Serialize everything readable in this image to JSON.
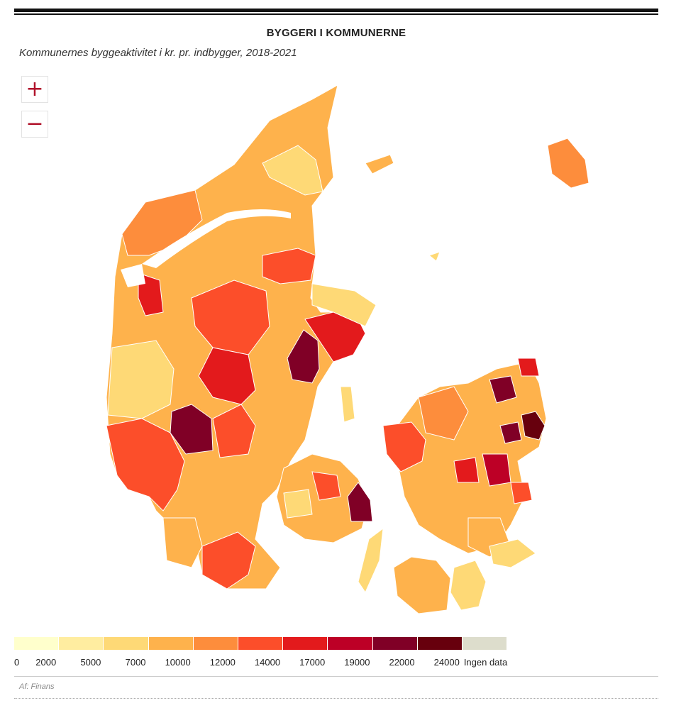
{
  "header": {
    "title": "BYGGERI I KOMMUNERNE",
    "subtitle": "Kommunernes byggeaktivitet i kr. pr. indbygger, 2018-2021"
  },
  "controls": {
    "zoom_in": "+",
    "zoom_out": "−"
  },
  "legend": {
    "colors": [
      "#ffffcc",
      "#ffeda0",
      "#fed976",
      "#feb24c",
      "#fd8d3c",
      "#fc4e2a",
      "#e31a1c",
      "#bd0026",
      "#800026",
      "#67000d",
      "#ddddcc"
    ],
    "ticks": [
      "0",
      "2000",
      "5000",
      "7000",
      "10000",
      "12000",
      "14000",
      "17000",
      "19000",
      "22000",
      "24000"
    ],
    "no_data_label": "Ingen data"
  },
  "credit": "Af: Finans"
}
